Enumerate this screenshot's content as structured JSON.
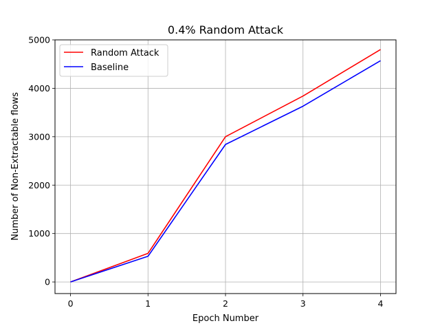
{
  "chart_data": {
    "type": "line",
    "title": "0.4% Random Attack",
    "xlabel": "Epoch Number",
    "ylabel": "Number of Non-Extractable flows",
    "x": [
      0,
      1,
      2,
      3,
      4
    ],
    "xticks": [
      "0",
      "1",
      "2",
      "3",
      "4"
    ],
    "yticks": [
      "0",
      "1000",
      "2000",
      "3000",
      "4000",
      "5000"
    ],
    "xlim": [
      -0.2,
      4.2
    ],
    "ylim": [
      -240,
      5000
    ],
    "grid": true,
    "legend_position": "upper-left",
    "series": [
      {
        "name": "Random Attack",
        "color": "#ff0000",
        "values": [
          0,
          590,
          3000,
          3840,
          4800
        ]
      },
      {
        "name": "Baseline",
        "color": "#0000ff",
        "values": [
          0,
          530,
          2840,
          3630,
          4570
        ]
      }
    ]
  }
}
